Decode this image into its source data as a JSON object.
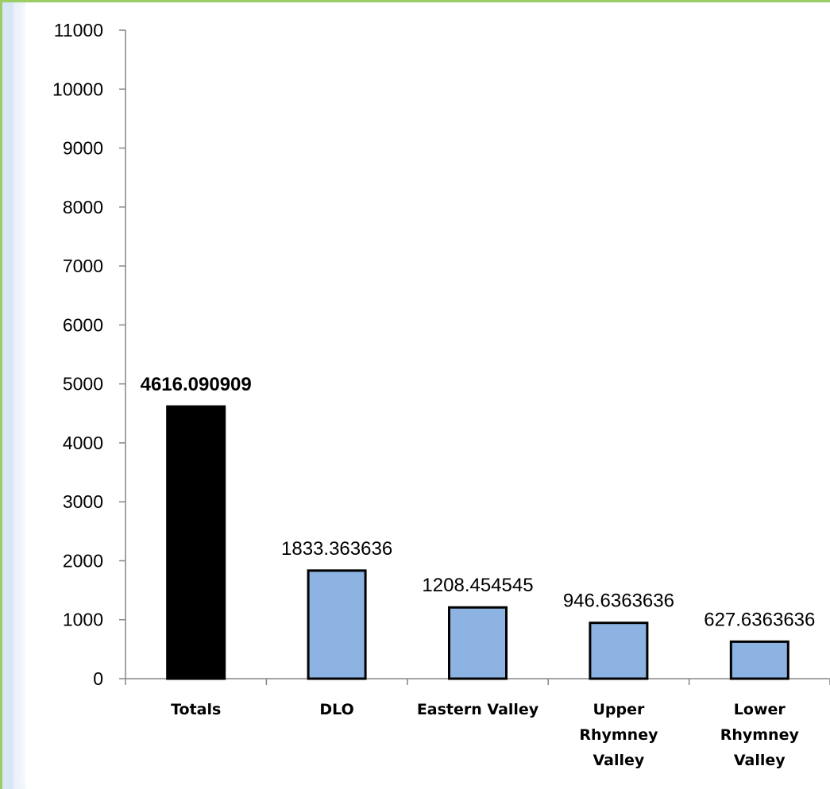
{
  "chart_data": {
    "type": "bar",
    "title": "",
    "xlabel": "",
    "ylabel": "",
    "ylim": [
      0,
      11000
    ],
    "yticks": [
      0,
      1000,
      2000,
      3000,
      4000,
      5000,
      6000,
      7000,
      8000,
      9000,
      10000,
      11000
    ],
    "grid": false,
    "categories": [
      "Totals",
      "DLO",
      "Eastern Valley",
      "Upper Rhymney Valley",
      "Lower Rhymney Valley"
    ],
    "category_lines": [
      [
        "Totals"
      ],
      [
        "DLO"
      ],
      [
        "Eastern Valley"
      ],
      [
        "Upper",
        "Rhymney",
        "Valley"
      ],
      [
        "Lower",
        "Rhymney",
        "Valley"
      ]
    ],
    "values": [
      4616.090909,
      1833.363636,
      1208.454545,
      946.6363636,
      627.6363636
    ],
    "data_labels": [
      "4616.090909",
      "1833.363636",
      "1208.454545",
      "946.6363636",
      "627.6363636"
    ],
    "bar_colors": [
      "#000000",
      "#8db3e2",
      "#8db3e2",
      "#8db3e2",
      "#8db3e2"
    ],
    "bar_border": "#000000"
  }
}
